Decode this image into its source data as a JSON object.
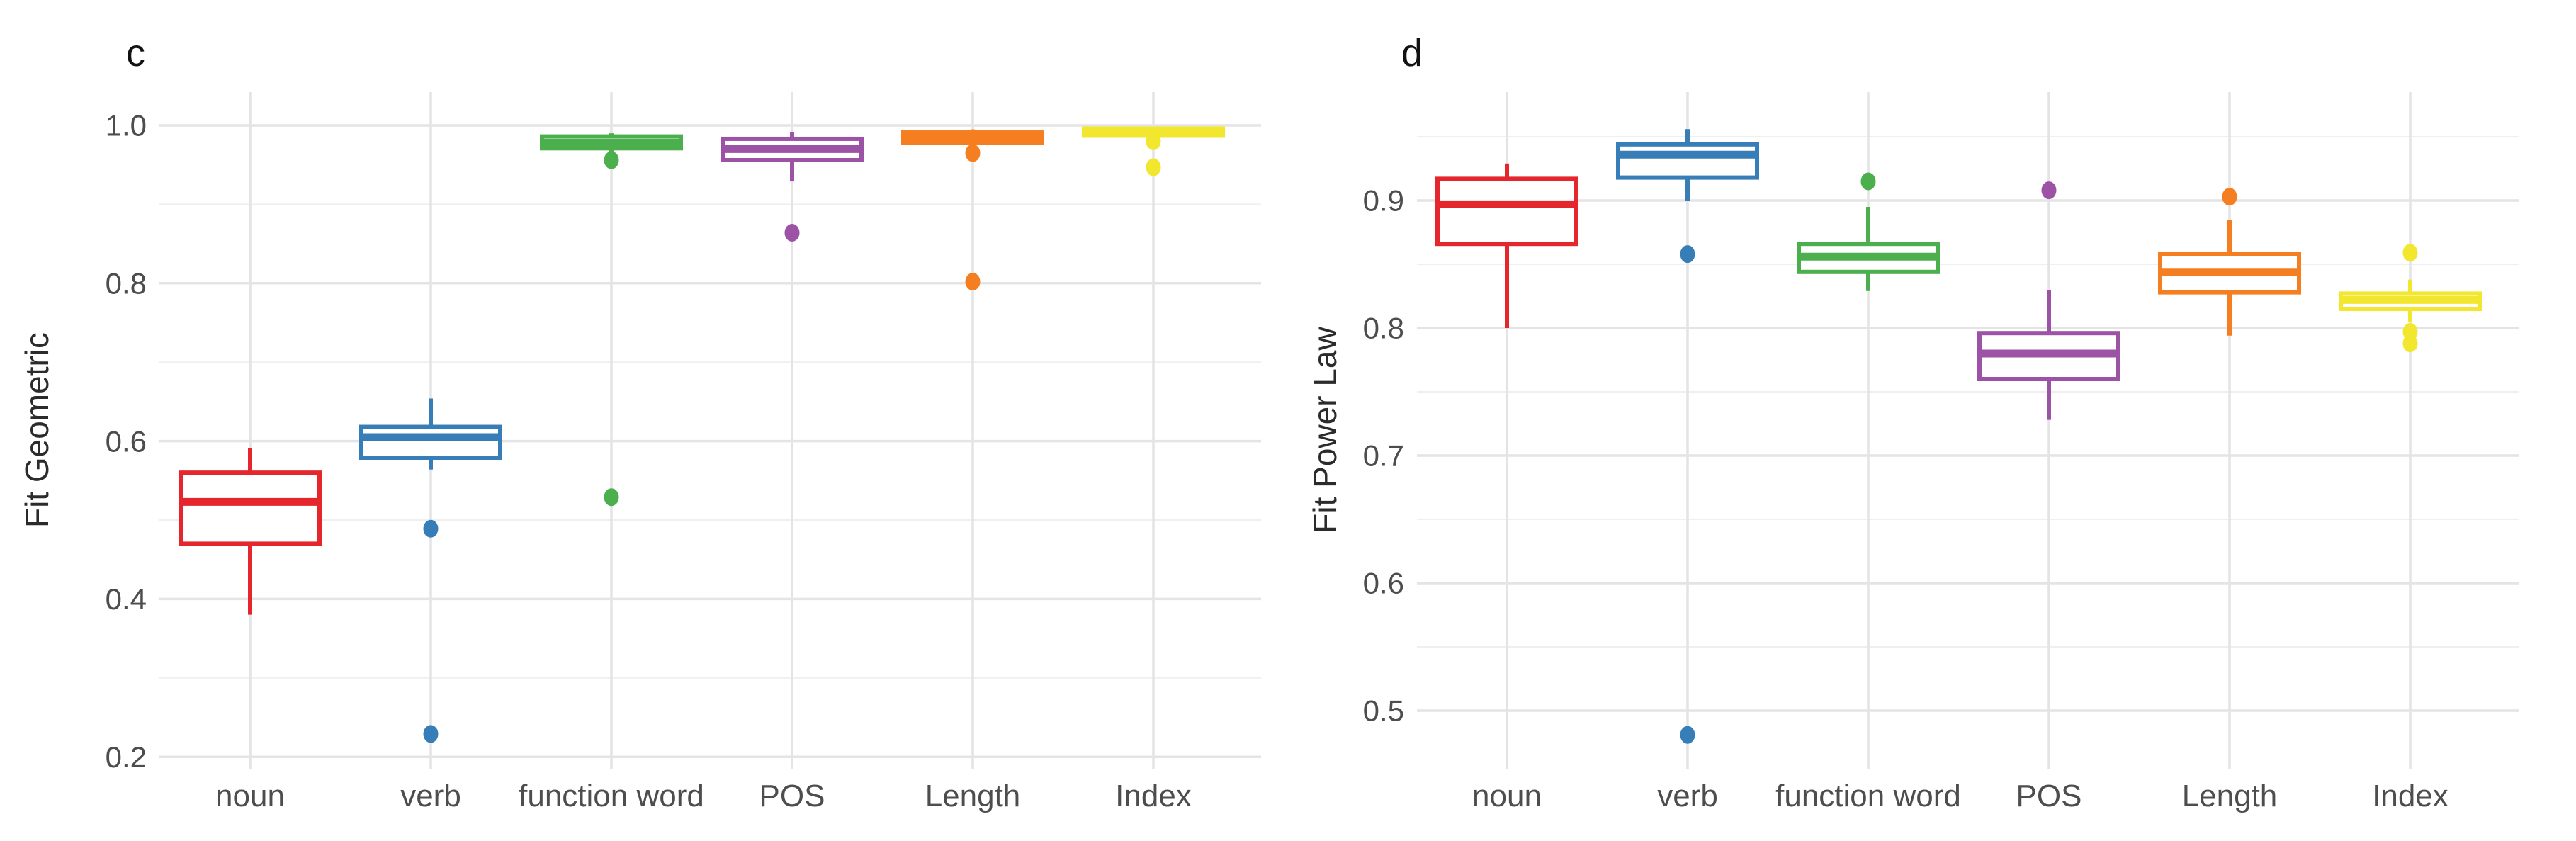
{
  "figure": {
    "background": "#FFFFFF",
    "grid_major_color": "#E4E4E4",
    "grid_minor_color": "#EFEFEF",
    "axis_text_color": "#4D4D4D",
    "axis_title_color": "#2B2B2B",
    "tag_color": "#111111"
  },
  "chart_data": [
    {
      "type": "boxplot",
      "tag": "c",
      "ylabel": "Fit Geometric",
      "categories": [
        "noun",
        "verb",
        "function word",
        "POS",
        "Length",
        "Index"
      ],
      "y_tick_labels": [
        "1.0",
        "0.8",
        "0.6",
        "0.4",
        "0.2"
      ],
      "y_tick_values": [
        1.0,
        0.8,
        0.6,
        0.4,
        0.2
      ],
      "y_minor_values": [
        0.9,
        0.7,
        0.5,
        0.3
      ],
      "ylim": [
        0.185,
        1.042
      ],
      "grid": true,
      "series": [
        {
          "category": "noun",
          "color": "#E5262D",
          "whisker_low": 0.38,
          "q1": 0.47,
          "median": 0.523,
          "q3": 0.56,
          "whisker_high": 0.591,
          "outliers": []
        },
        {
          "category": "verb",
          "color": "#377EB8",
          "whisker_low": 0.564,
          "q1": 0.579,
          "median": 0.605,
          "q3": 0.618,
          "whisker_high": 0.654,
          "outliers": [
            0.489,
            0.229
          ]
        },
        {
          "category": "function word",
          "color": "#4CAF4E",
          "whisker_low": 0.964,
          "q1": 0.971,
          "median": 0.978,
          "q3": 0.986,
          "whisker_high": 0.99,
          "outliers": [
            0.956,
            0.529
          ]
        },
        {
          "category": "POS",
          "color": "#9C52A5",
          "whisker_low": 0.929,
          "q1": 0.956,
          "median": 0.97,
          "q3": 0.983,
          "whisker_high": 0.991,
          "outliers": [
            0.864
          ]
        },
        {
          "category": "Length",
          "color": "#F57E20",
          "whisker_low": 0.974,
          "q1": 0.978,
          "median": 0.985,
          "q3": 0.991,
          "whisker_high": 0.995,
          "outliers": [
            0.965,
            0.802
          ]
        },
        {
          "category": "Index",
          "color": "#F2E72E",
          "whisker_low": 0.984,
          "q1": 0.987,
          "median": 0.992,
          "q3": 0.996,
          "whisker_high": 0.998,
          "outliers": [
            0.98,
            0.947
          ]
        }
      ]
    },
    {
      "type": "boxplot",
      "tag": "d",
      "ylabel": "Fit Power Law",
      "categories": [
        "noun",
        "verb",
        "function word",
        "POS",
        "Length",
        "Index"
      ],
      "y_tick_labels": [
        "0.9",
        "0.8",
        "0.7",
        "0.6",
        "0.5"
      ],
      "y_tick_values": [
        0.9,
        0.8,
        0.7,
        0.6,
        0.5
      ],
      "y_minor_values": [
        0.95,
        0.85,
        0.75,
        0.65,
        0.55
      ],
      "ylim": [
        0.454,
        0.985
      ],
      "grid": true,
      "series": [
        {
          "category": "noun",
          "color": "#E5262D",
          "whisker_low": 0.8,
          "q1": 0.866,
          "median": 0.897,
          "q3": 0.917,
          "whisker_high": 0.929,
          "outliers": []
        },
        {
          "category": "verb",
          "color": "#377EB8",
          "whisker_low": 0.9,
          "q1": 0.918,
          "median": 0.936,
          "q3": 0.944,
          "whisker_high": 0.956,
          "outliers": [
            0.858,
            0.481
          ]
        },
        {
          "category": "function word",
          "color": "#4CAF4E",
          "whisker_low": 0.829,
          "q1": 0.844,
          "median": 0.856,
          "q3": 0.866,
          "whisker_high": 0.895,
          "outliers": [
            0.915
          ]
        },
        {
          "category": "POS",
          "color": "#9C52A5",
          "whisker_low": 0.728,
          "q1": 0.76,
          "median": 0.78,
          "q3": 0.796,
          "whisker_high": 0.83,
          "outliers": [
            0.908
          ]
        },
        {
          "category": "Length",
          "color": "#F57E20",
          "whisker_low": 0.794,
          "q1": 0.828,
          "median": 0.844,
          "q3": 0.858,
          "whisker_high": 0.885,
          "outliers": [
            0.903
          ]
        },
        {
          "category": "Index",
          "color": "#F2E72E",
          "whisker_low": 0.805,
          "q1": 0.815,
          "median": 0.822,
          "q3": 0.827,
          "whisker_high": 0.838,
          "outliers": [
            0.859,
            0.797,
            0.788
          ]
        }
      ]
    }
  ]
}
